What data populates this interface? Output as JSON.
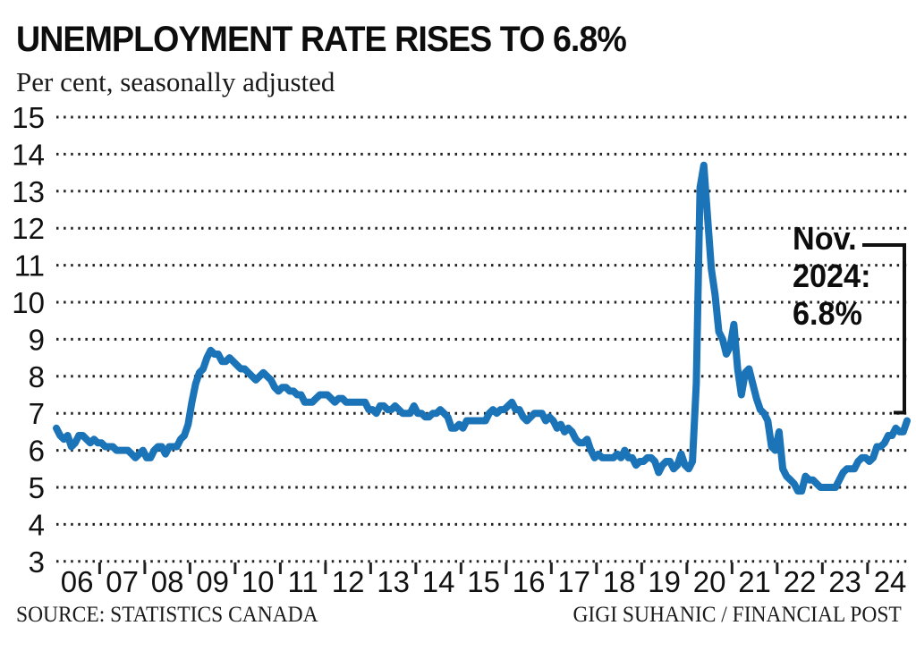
{
  "header": {
    "title": "UNEMPLOYMENT RATE RISES TO 6.8%",
    "subtitle": "Per cent, seasonally adjusted"
  },
  "annotation": {
    "lines": [
      "Nov.",
      "2024:",
      "6.8%"
    ]
  },
  "footer": {
    "source": "SOURCE: STATISTICS CANADA",
    "credit": "GIGI SUHANIC / FINANCIAL POST"
  },
  "colors": {
    "line": "#1b73b8",
    "text": "#111111",
    "grid": "#222222",
    "bracket": "#111111",
    "background": "#ffffff"
  },
  "chart_data": {
    "type": "line",
    "title": "UNEMPLOYMENT RATE RISES TO 6.8%",
    "ylabel": "Per cent, seasonally adjusted",
    "grid": "dotted-horizontal",
    "ylim": [
      3,
      15
    ],
    "y_ticks": [
      3,
      4,
      5,
      6,
      7,
      8,
      9,
      10,
      11,
      12,
      13,
      14,
      15
    ],
    "x_tick_labels": [
      "06",
      "07",
      "08",
      "09",
      "10",
      "11",
      "12",
      "13",
      "14",
      "15",
      "16",
      "17",
      "18",
      "19",
      "20",
      "21",
      "22",
      "23",
      "24"
    ],
    "x_start": "2006-01",
    "x_end": "2024-11",
    "highlight": {
      "label": "Nov. 2024: 6.8%",
      "value": 6.8
    },
    "series": [
      {
        "name": "Unemployment rate, per cent, seasonally adjusted",
        "frequency": "monthly",
        "values": [
          6.6,
          6.4,
          6.3,
          6.4,
          6.1,
          6.2,
          6.4,
          6.4,
          6.3,
          6.2,
          6.3,
          6.2,
          6.2,
          6.1,
          6.1,
          6.1,
          6.0,
          6.0,
          6.0,
          6.0,
          5.9,
          5.8,
          5.9,
          6.0,
          5.8,
          5.8,
          6.0,
          6.1,
          6.1,
          5.9,
          6.1,
          6.1,
          6.1,
          6.3,
          6.4,
          6.7,
          7.3,
          7.8,
          8.1,
          8.2,
          8.5,
          8.7,
          8.6,
          8.6,
          8.4,
          8.4,
          8.5,
          8.4,
          8.3,
          8.2,
          8.2,
          8.1,
          8.0,
          7.9,
          8.0,
          8.1,
          8.0,
          7.9,
          7.7,
          7.6,
          7.7,
          7.7,
          7.6,
          7.6,
          7.5,
          7.5,
          7.3,
          7.3,
          7.3,
          7.4,
          7.5,
          7.5,
          7.5,
          7.4,
          7.3,
          7.4,
          7.4,
          7.3,
          7.3,
          7.3,
          7.3,
          7.3,
          7.3,
          7.1,
          7.1,
          7.0,
          7.2,
          7.2,
          7.1,
          7.1,
          7.2,
          7.1,
          7.0,
          7.0,
          7.0,
          7.2,
          7.0,
          7.0,
          6.9,
          6.9,
          7.0,
          7.0,
          7.1,
          7.0,
          6.9,
          6.6,
          6.6,
          6.7,
          6.6,
          6.8,
          6.8,
          6.8,
          6.8,
          6.8,
          6.8,
          7.0,
          7.1,
          7.0,
          7.1,
          7.1,
          7.2,
          7.3,
          7.1,
          7.1,
          6.9,
          6.8,
          6.9,
          7.0,
          7.0,
          7.0,
          6.8,
          6.9,
          6.8,
          6.6,
          6.7,
          6.5,
          6.6,
          6.5,
          6.3,
          6.2,
          6.2,
          6.3,
          6.0,
          5.8,
          5.9,
          5.8,
          5.8,
          5.8,
          5.8,
          5.9,
          5.8,
          6.0,
          5.8,
          5.8,
          5.6,
          5.7,
          5.7,
          5.8,
          5.8,
          5.7,
          5.4,
          5.6,
          5.7,
          5.7,
          5.5,
          5.6,
          5.9,
          5.6,
          5.5,
          5.7,
          7.8,
          13.1,
          13.7,
          12.3,
          10.9,
          10.2,
          9.2,
          9.0,
          8.6,
          8.8,
          9.4,
          8.2,
          7.5,
          8.1,
          8.2,
          7.8,
          7.4,
          7.1,
          7.0,
          6.8,
          6.1,
          6.0,
          6.5,
          5.5,
          5.3,
          5.2,
          5.1,
          4.9,
          4.9,
          5.3,
          5.2,
          5.2,
          5.1,
          5.0,
          5.0,
          5.0,
          5.0,
          5.0,
          5.2,
          5.4,
          5.5,
          5.5,
          5.5,
          5.7,
          5.8,
          5.8,
          5.7,
          5.8,
          6.1,
          6.1,
          6.2,
          6.4,
          6.4,
          6.6,
          6.5,
          6.5,
          6.8
        ]
      }
    ]
  }
}
